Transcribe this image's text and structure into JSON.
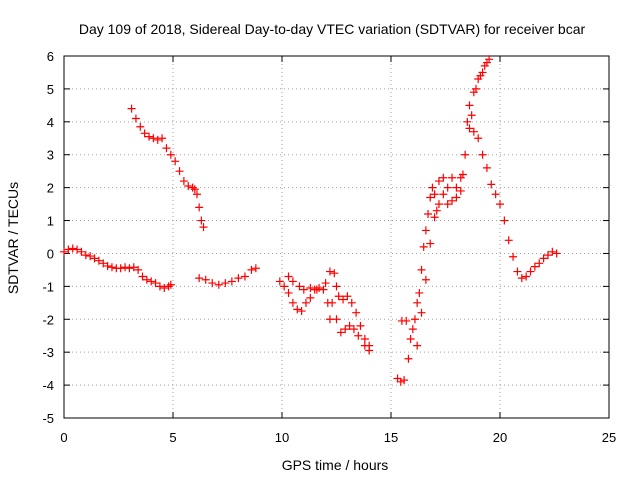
{
  "chart_data": {
    "type": "scatter",
    "title": "Day 109 of 2018, Sidereal Day-to-day VTEC variation (SDTVAR) for receiver bcar",
    "xlabel": "GPS time / hours",
    "ylabel": "SDTVAR / TECUs",
    "xlim": [
      0,
      25
    ],
    "ylim": [
      -5,
      6
    ],
    "xticks": [
      "0",
      "5",
      "10",
      "15",
      "20",
      "25"
    ],
    "yticks": [
      "-5",
      "-4",
      "-3",
      "-2",
      "-1",
      "0",
      "1",
      "2",
      "3",
      "4",
      "5",
      "6"
    ],
    "grid": true,
    "marker": "+",
    "marker_color": "#ff0000",
    "series": [
      {
        "name": "SDTVAR",
        "points": [
          [
            0.0,
            0.05
          ],
          [
            0.2,
            0.12
          ],
          [
            0.4,
            0.15
          ],
          [
            0.6,
            0.12
          ],
          [
            0.8,
            0.05
          ],
          [
            1.0,
            -0.05
          ],
          [
            1.2,
            -0.08
          ],
          [
            1.4,
            -0.15
          ],
          [
            1.6,
            -0.22
          ],
          [
            1.8,
            -0.3
          ],
          [
            2.0,
            -0.38
          ],
          [
            2.2,
            -0.42
          ],
          [
            2.4,
            -0.45
          ],
          [
            2.6,
            -0.45
          ],
          [
            2.8,
            -0.42
          ],
          [
            3.0,
            -0.45
          ],
          [
            3.2,
            -0.42
          ],
          [
            3.4,
            -0.5
          ],
          [
            3.6,
            -0.7
          ],
          [
            3.8,
            -0.8
          ],
          [
            4.0,
            -0.85
          ],
          [
            4.2,
            -0.9
          ],
          [
            4.4,
            -1.0
          ],
          [
            4.6,
            -1.05
          ],
          [
            4.8,
            -1.0
          ],
          [
            4.9,
            -0.95
          ],
          [
            3.1,
            4.4
          ],
          [
            3.3,
            4.1
          ],
          [
            3.5,
            3.85
          ],
          [
            3.7,
            3.65
          ],
          [
            3.9,
            3.55
          ],
          [
            4.1,
            3.5
          ],
          [
            4.3,
            3.45
          ],
          [
            4.5,
            3.5
          ],
          [
            4.7,
            3.2
          ],
          [
            4.9,
            3.0
          ],
          [
            5.1,
            2.8
          ],
          [
            5.3,
            2.5
          ],
          [
            5.5,
            2.2
          ],
          [
            5.7,
            2.05
          ],
          [
            5.9,
            2.0
          ],
          [
            6.0,
            1.95
          ],
          [
            6.1,
            1.8
          ],
          [
            6.2,
            1.4
          ],
          [
            6.3,
            1.0
          ],
          [
            6.4,
            0.8
          ],
          [
            6.2,
            -0.75
          ],
          [
            6.5,
            -0.8
          ],
          [
            6.8,
            -0.9
          ],
          [
            7.1,
            -0.95
          ],
          [
            7.4,
            -0.9
          ],
          [
            7.7,
            -0.85
          ],
          [
            8.0,
            -0.75
          ],
          [
            8.3,
            -0.7
          ],
          [
            8.6,
            -0.5
          ],
          [
            8.8,
            -0.45
          ],
          [
            9.9,
            -0.85
          ],
          [
            10.1,
            -1.0
          ],
          [
            10.3,
            -1.2
          ],
          [
            10.5,
            -1.5
          ],
          [
            10.7,
            -1.7
          ],
          [
            10.9,
            -1.75
          ],
          [
            11.1,
            -1.5
          ],
          [
            11.3,
            -1.35
          ],
          [
            11.5,
            -1.1
          ],
          [
            11.7,
            -1.05
          ],
          [
            11.9,
            -1.1
          ],
          [
            12.1,
            -1.5
          ],
          [
            12.2,
            -2.0
          ],
          [
            10.3,
            -0.7
          ],
          [
            10.5,
            -0.85
          ],
          [
            10.8,
            -1.0
          ],
          [
            11.0,
            -1.1
          ],
          [
            11.3,
            -1.05
          ],
          [
            11.6,
            -1.1
          ],
          [
            12.0,
            -0.9
          ],
          [
            12.2,
            -0.55
          ],
          [
            12.4,
            -0.6
          ],
          [
            12.5,
            -1.0
          ],
          [
            12.6,
            -1.3
          ],
          [
            12.8,
            -1.4
          ],
          [
            13.0,
            -1.3
          ],
          [
            13.2,
            -1.5
          ],
          [
            13.4,
            -1.8
          ],
          [
            13.6,
            -2.2
          ],
          [
            13.8,
            -2.6
          ],
          [
            14.0,
            -2.8
          ],
          [
            12.3,
            -1.5
          ],
          [
            12.5,
            -2.0
          ],
          [
            12.7,
            -2.4
          ],
          [
            12.9,
            -2.3
          ],
          [
            13.1,
            -2.2
          ],
          [
            13.3,
            -2.3
          ],
          [
            13.5,
            -2.5
          ],
          [
            13.8,
            -2.8
          ],
          [
            14.0,
            -2.95
          ],
          [
            15.3,
            -3.8
          ],
          [
            15.45,
            -3.9
          ],
          [
            15.6,
            -3.85
          ],
          [
            15.5,
            -2.05
          ],
          [
            15.7,
            -2.05
          ],
          [
            15.8,
            -3.2
          ],
          [
            15.9,
            -2.6
          ],
          [
            16.0,
            -2.3
          ],
          [
            16.1,
            -2.0
          ],
          [
            16.2,
            -1.5
          ],
          [
            16.3,
            -1.2
          ],
          [
            16.4,
            -0.5
          ],
          [
            16.5,
            0.2
          ],
          [
            16.6,
            0.7
          ],
          [
            16.7,
            1.2
          ],
          [
            16.8,
            1.7
          ],
          [
            16.9,
            2.0
          ],
          [
            17.0,
            1.8
          ],
          [
            17.1,
            1.3
          ],
          [
            17.2,
            2.2
          ],
          [
            17.4,
            1.8
          ],
          [
            17.6,
            2.0
          ],
          [
            17.8,
            1.6
          ],
          [
            18.0,
            2.0
          ],
          [
            18.2,
            1.9
          ],
          [
            18.3,
            2.4
          ],
          [
            18.4,
            3.0
          ],
          [
            18.5,
            4.0
          ],
          [
            18.6,
            4.5
          ],
          [
            18.7,
            4.2
          ],
          [
            18.8,
            4.9
          ],
          [
            18.9,
            5.0
          ],
          [
            19.0,
            5.3
          ],
          [
            19.1,
            5.4
          ],
          [
            19.2,
            5.5
          ],
          [
            19.3,
            5.7
          ],
          [
            19.4,
            5.8
          ],
          [
            19.5,
            5.9
          ],
          [
            16.2,
            -2.8
          ],
          [
            16.4,
            -1.8
          ],
          [
            16.6,
            -0.8
          ],
          [
            16.8,
            0.3
          ],
          [
            17.0,
            1.1
          ],
          [
            17.2,
            1.5
          ],
          [
            17.4,
            2.3
          ],
          [
            17.6,
            1.5
          ],
          [
            17.8,
            2.3
          ],
          [
            18.0,
            1.7
          ],
          [
            18.2,
            2.3
          ],
          [
            18.6,
            3.8
          ],
          [
            18.8,
            3.7
          ],
          [
            19.0,
            3.5
          ],
          [
            19.2,
            3.0
          ],
          [
            19.4,
            2.6
          ],
          [
            19.6,
            2.1
          ],
          [
            19.8,
            1.8
          ],
          [
            20.0,
            1.5
          ],
          [
            20.2,
            1.0
          ],
          [
            20.4,
            0.4
          ],
          [
            20.6,
            -0.1
          ],
          [
            20.8,
            -0.55
          ],
          [
            21.0,
            -0.75
          ],
          [
            21.2,
            -0.7
          ],
          [
            21.4,
            -0.55
          ],
          [
            21.6,
            -0.4
          ],
          [
            21.8,
            -0.3
          ],
          [
            22.0,
            -0.15
          ],
          [
            22.2,
            -0.05
          ],
          [
            22.4,
            0.05
          ],
          [
            22.6,
            0.0
          ]
        ]
      }
    ]
  }
}
